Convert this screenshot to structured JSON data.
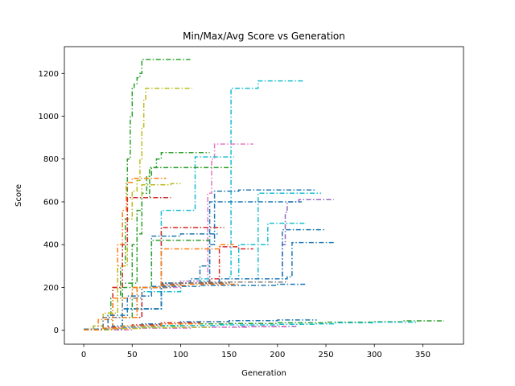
{
  "chart_data": {
    "type": "line",
    "title": "Min/Max/Avg Score vs Generation",
    "xlabel": "Generation",
    "ylabel": "Score",
    "xlim": [
      -20,
      392
    ],
    "ylim": [
      -65,
      1325
    ],
    "x_ticks": [
      0,
      50,
      100,
      150,
      200,
      250,
      300,
      350
    ],
    "y_ticks": [
      0,
      200,
      400,
      600,
      800,
      1000,
      1200
    ],
    "grid": false,
    "legend": "none",
    "line_style": "dash-dot",
    "palette": [
      "#1f77b4",
      "#ff7f0e",
      "#2ca02c",
      "#d62728",
      "#9467bd",
      "#8c564b",
      "#e377c2",
      "#7f7f7f",
      "#bcbd22",
      "#17becf"
    ],
    "series": [
      {
        "color": "#2ca02c",
        "x": [
          0,
          10,
          20,
          28,
          38,
          43,
          45,
          48,
          50,
          52,
          55,
          58,
          60,
          62,
          110
        ],
        "y": [
          5,
          20,
          60,
          150,
          300,
          520,
          800,
          1000,
          1130,
          1150,
          1180,
          1200,
          1265,
          1265,
          1265
        ]
      },
      {
        "color": "#bcbd22",
        "x": [
          0,
          10,
          20,
          30,
          40,
          45,
          50,
          55,
          58,
          60,
          62,
          64,
          75,
          112
        ],
        "y": [
          5,
          20,
          80,
          200,
          360,
          520,
          650,
          700,
          800,
          950,
          1080,
          1130,
          1130,
          1130
        ]
      },
      {
        "color": "#17becf",
        "x": [
          0,
          30,
          60,
          100,
          130,
          150,
          152,
          160,
          175,
          180,
          210,
          228
        ],
        "y": [
          5,
          60,
          180,
          230,
          240,
          250,
          1130,
          1130,
          1130,
          1165,
          1165,
          1165
        ]
      },
      {
        "color": "#2ca02c",
        "x": [
          0,
          20,
          40,
          50,
          55,
          60,
          65,
          70,
          75,
          80,
          110,
          130
        ],
        "y": [
          5,
          60,
          200,
          400,
          560,
          640,
          720,
          760,
          800,
          830,
          830,
          830
        ]
      },
      {
        "color": "#e377c2",
        "x": [
          0,
          30,
          60,
          100,
          120,
          128,
          132,
          135,
          175
        ],
        "y": [
          5,
          60,
          200,
          230,
          240,
          640,
          800,
          870,
          870
        ]
      },
      {
        "color": "#17becf",
        "x": [
          0,
          30,
          60,
          80,
          115,
          155
        ],
        "y": [
          5,
          60,
          200,
          560,
          810,
          810
        ]
      },
      {
        "color": "#ff7f0e",
        "x": [
          0,
          20,
          30,
          35,
          40,
          44,
          50,
          60,
          85
        ],
        "y": [
          5,
          60,
          200,
          400,
          560,
          690,
          710,
          710,
          710
        ]
      },
      {
        "color": "#2ca02c",
        "x": [
          0,
          20,
          40,
          55,
          60,
          68,
          82,
          92,
          96,
          132,
          155
        ],
        "y": [
          5,
          60,
          220,
          450,
          620,
          760,
          760,
          760,
          760,
          760,
          760
        ]
      },
      {
        "color": "#bcbd22",
        "x": [
          0,
          25,
          35,
          45,
          60,
          90,
          100
        ],
        "y": [
          5,
          80,
          300,
          620,
          680,
          685,
          685
        ]
      },
      {
        "color": "#d62728",
        "x": [
          0,
          20,
          30,
          40,
          45,
          60,
          90
        ],
        "y": [
          5,
          60,
          200,
          400,
          620,
          620,
          620
        ]
      },
      {
        "color": "#1f77b4",
        "x": [
          0,
          40,
          80,
          120,
          130,
          135,
          160,
          200,
          240
        ],
        "y": [
          5,
          100,
          220,
          240,
          400,
          650,
          655,
          655,
          655
        ]
      },
      {
        "color": "#9467bd",
        "x": [
          0,
          40,
          80,
          140,
          180,
          200,
          205,
          208,
          210,
          222,
          235,
          258
        ],
        "y": [
          5,
          100,
          220,
          240,
          240,
          240,
          400,
          550,
          600,
          610,
          610,
          610
        ]
      },
      {
        "color": "#17becf",
        "x": [
          0,
          40,
          80,
          120,
          150,
          160,
          180,
          195,
          245
        ],
        "y": [
          5,
          100,
          220,
          240,
          240,
          400,
          640,
          640,
          640
        ]
      },
      {
        "color": "#1f77b4",
        "x": [
          0,
          40,
          80,
          110,
          120,
          130,
          150,
          170,
          200,
          225
        ],
        "y": [
          5,
          100,
          220,
          240,
          300,
          600,
          600,
          600,
          600,
          600
        ]
      },
      {
        "color": "#17becf",
        "x": [
          0,
          40,
          80,
          130,
          170,
          180,
          190,
          210,
          230
        ],
        "y": [
          5,
          100,
          220,
          240,
          240,
          400,
          500,
          500,
          500
        ]
      },
      {
        "color": "#1f77b4",
        "x": [
          0,
          40,
          80,
          140,
          180,
          200,
          205,
          250
        ],
        "y": [
          5,
          100,
          220,
          240,
          240,
          240,
          470,
          470
        ]
      },
      {
        "color": "#1f77b4",
        "x": [
          0,
          40,
          80,
          140,
          190,
          210,
          215,
          258
        ],
        "y": [
          5,
          100,
          220,
          240,
          240,
          250,
          410,
          410
        ]
      },
      {
        "color": "#d62728",
        "x": [
          0,
          30,
          60,
          90,
          130,
          140,
          160,
          175
        ],
        "y": [
          5,
          60,
          200,
          220,
          240,
          390,
          380,
          380
        ]
      },
      {
        "color": "#d62728",
        "x": [
          0,
          30,
          55,
          80,
          110,
          145
        ],
        "y": [
          5,
          60,
          200,
          480,
          480,
          480
        ]
      },
      {
        "color": "#1f77b4",
        "x": [
          0,
          30,
          55,
          70,
          100,
          140
        ],
        "y": [
          5,
          60,
          200,
          440,
          450,
          450
        ]
      },
      {
        "color": "#2ca02c",
        "x": [
          0,
          30,
          50,
          70,
          90,
          100,
          130
        ],
        "y": [
          5,
          60,
          200,
          420,
          420,
          420,
          420
        ]
      },
      {
        "color": "#ff7f0e",
        "x": [
          0,
          30,
          55,
          80,
          110,
          140,
          155
        ],
        "y": [
          5,
          60,
          200,
          380,
          380,
          400,
          400
        ]
      },
      {
        "color": "#8c564b",
        "x": [
          0,
          20,
          40,
          60,
          80,
          100,
          150
        ],
        "y": [
          5,
          60,
          150,
          200,
          215,
          220,
          225
        ]
      },
      {
        "color": "#7f7f7f",
        "x": [
          0,
          20,
          40,
          60,
          90,
          120,
          210
        ],
        "y": [
          5,
          60,
          150,
          200,
          220,
          225,
          230
        ]
      },
      {
        "color": "#ff7f0e",
        "x": [
          0,
          15,
          30,
          50,
          80,
          110,
          160
        ],
        "y": [
          5,
          50,
          150,
          200,
          210,
          215,
          215
        ]
      },
      {
        "color": "#1f77b4",
        "x": [
          0,
          25,
          45,
          70,
          120,
          200,
          230
        ],
        "y": [
          5,
          70,
          160,
          205,
          210,
          215,
          215
        ]
      },
      {
        "color": "#d62728",
        "x": [
          0,
          25,
          50,
          80,
          120,
          150
        ],
        "y": [
          2,
          15,
          25,
          35,
          40,
          45
        ]
      },
      {
        "color": "#1f77b4",
        "x": [
          0,
          30,
          60,
          100,
          150,
          200,
          240
        ],
        "y": [
          2,
          20,
          30,
          40,
          45,
          48,
          50
        ]
      },
      {
        "color": "#2ca02c",
        "x": [
          0,
          50,
          100,
          150,
          200,
          250,
          300,
          330,
          372
        ],
        "y": [
          2,
          20,
          30,
          32,
          35,
          38,
          40,
          44,
          44
        ]
      },
      {
        "color": "#17becf",
        "x": [
          0,
          40,
          80,
          140,
          200,
          240,
          260,
          300,
          345
        ],
        "y": [
          2,
          15,
          22,
          25,
          28,
          30,
          35,
          38,
          40
        ]
      },
      {
        "color": "#9467bd",
        "x": [
          0,
          40,
          100,
          160,
          220
        ],
        "y": [
          2,
          10,
          15,
          18,
          20
        ]
      },
      {
        "color": "#e377c2",
        "x": [
          0,
          50,
          110,
          170,
          210
        ],
        "y": [
          2,
          10,
          14,
          16,
          18
        ]
      },
      {
        "color": "#bcbd22",
        "x": [
          0,
          30,
          60,
          90,
          130
        ],
        "y": [
          2,
          8,
          12,
          14,
          15
        ]
      },
      {
        "color": "#ff7f0e",
        "x": [
          0,
          20,
          40,
          80,
          120
        ],
        "y": [
          2,
          10,
          20,
          30,
          35
        ]
      }
    ]
  }
}
